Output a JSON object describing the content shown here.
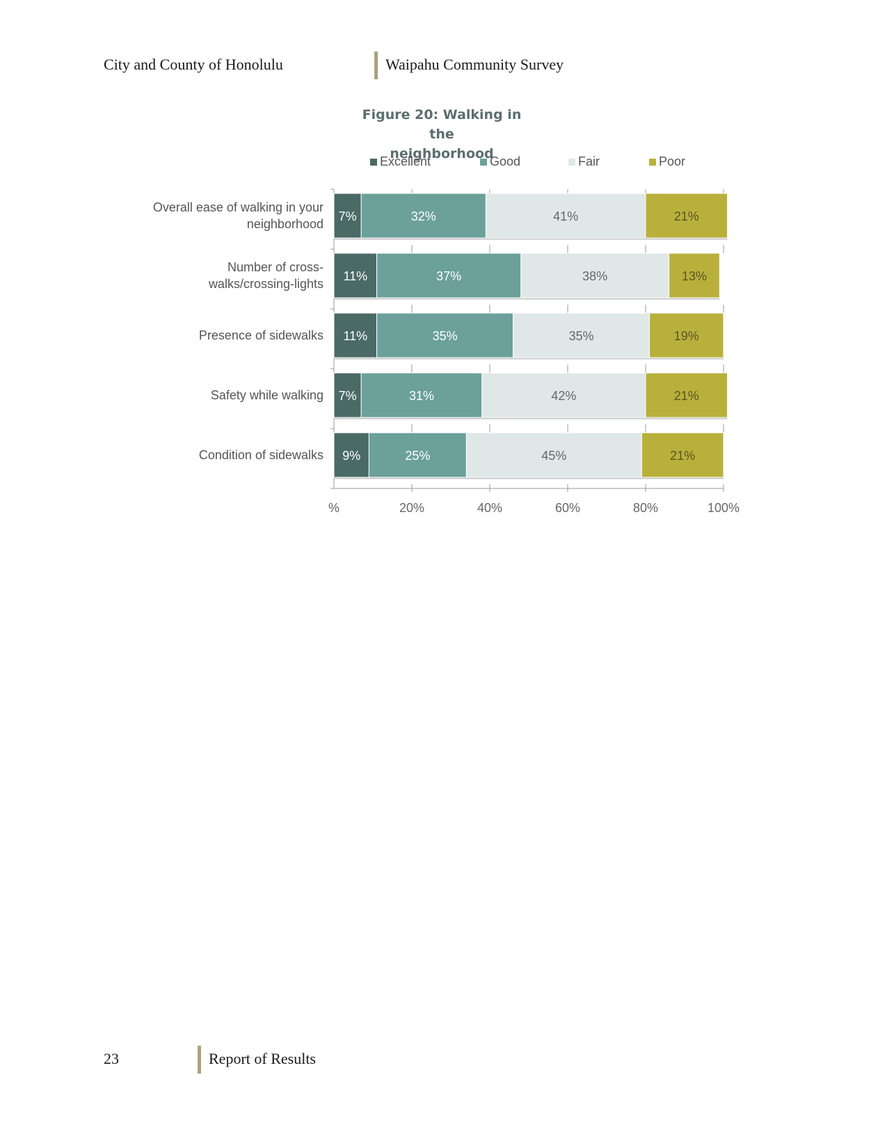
{
  "header": {
    "left": "City and County of Honolulu",
    "right": "Waipahu Community Survey"
  },
  "footer": {
    "page_number": "23",
    "text": "Report of Results"
  },
  "chart_data": {
    "type": "bar",
    "orientation": "horizontal",
    "stacked": true,
    "title": "Figure 20: Walking in the neighborhood",
    "title_lines": [
      "Figure 20: Walking in the",
      "neighborhood"
    ],
    "categories": [
      "Overall ease of walking in your neighborhood",
      "Number of cross-walks/crossing-lights",
      "Presence of sidewalks",
      "Safety while walking",
      "Condition of sidewalks"
    ],
    "category_lines": [
      [
        "Overall ease of walking in your",
        "neighborhood"
      ],
      [
        "Number of cross-",
        "walks/crossing-lights"
      ],
      [
        "Presence of sidewalks"
      ],
      [
        "Safety while walking"
      ],
      [
        "Condition of sidewalks"
      ]
    ],
    "series": [
      {
        "name": "Excellent",
        "color": "#4a6a66",
        "values": [
          7,
          11,
          11,
          7,
          9
        ]
      },
      {
        "name": "Good",
        "color": "#6ba09b",
        "values": [
          32,
          37,
          35,
          31,
          25
        ]
      },
      {
        "name": "Fair",
        "color": "#dfe8e7",
        "values": [
          41,
          38,
          35,
          42,
          45
        ]
      },
      {
        "name": "Poor",
        "color": "#b9b03c",
        "values": [
          21,
          13,
          19,
          21,
          21
        ]
      }
    ],
    "xlim": [
      0,
      100
    ],
    "x_ticks": [
      "%",
      "20%",
      "40%",
      "60%",
      "80%",
      "100%"
    ],
    "legend_position": "top",
    "grid": false
  }
}
